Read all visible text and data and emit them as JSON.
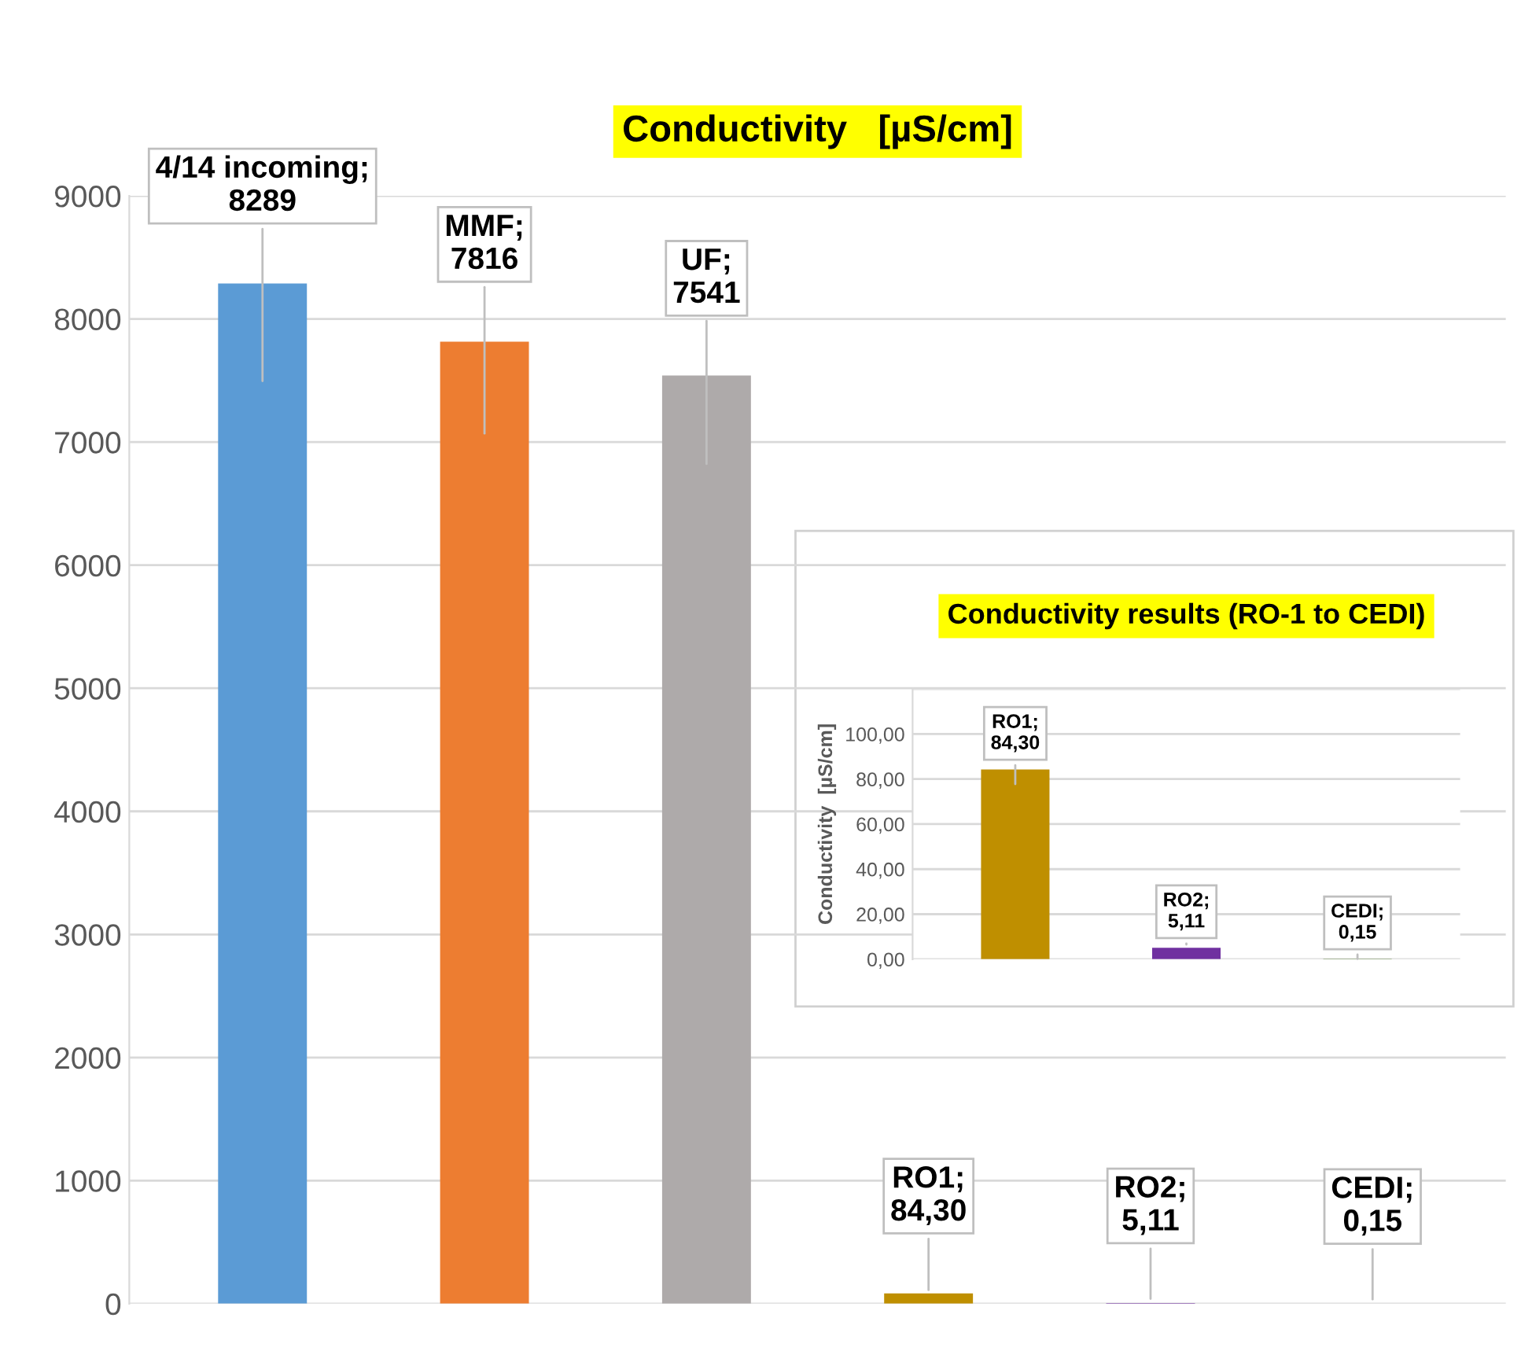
{
  "chart_data": [
    {
      "type": "bar",
      "title": "Conductivity   [µS/cm]",
      "categories": [
        null,
        null,
        null,
        null,
        null,
        null
      ],
      "values": [
        8289,
        7816,
        7541,
        84.3,
        5.11,
        0.15
      ],
      "value_labels": [
        "4/14 incoming;\n8289",
        "MMF;\n7816",
        "UF;\n7541",
        "RO1;\n84,30",
        "RO2;\n5,11",
        "CEDI;\n0,15"
      ],
      "colors": [
        "#5b9bd5",
        "#ed7d31",
        "#aeaaaa",
        "#bf8f00",
        "#7030a0",
        "#4e7a2a"
      ],
      "ylim": [
        0,
        9000
      ],
      "yticks": [
        0,
        1000,
        2000,
        3000,
        4000,
        5000,
        6000,
        7000,
        8000,
        9000
      ],
      "grid": "y",
      "tick_labels": "y"
    },
    {
      "type": "bar",
      "title": "Conductivity results (RO-1 to CEDI)",
      "ylabel": "Conductivity  [µS/cm]",
      "categories": [
        null,
        null,
        null
      ],
      "values": [
        84.3,
        5.11,
        0.15
      ],
      "value_labels": [
        "RO1;\n84,30",
        "RO2;\n5,11",
        "CEDI;\n0,15"
      ],
      "colors": [
        "#bf8f00",
        "#7030a0",
        "#4e7a2a"
      ],
      "ylim": [
        0,
        120
      ],
      "yticks": [
        {
          "value": 0,
          "label": "0,00"
        },
        {
          "value": 20,
          "label": "20,00"
        },
        {
          "value": 40,
          "label": "40,00"
        },
        {
          "value": 60,
          "label": "60,00"
        },
        {
          "value": 80,
          "label": "80,00"
        },
        {
          "value": 100,
          "label": "100,00"
        },
        {
          "value": 120,
          "label": null
        }
      ],
      "grid": "y",
      "tick_labels": "y"
    }
  ]
}
